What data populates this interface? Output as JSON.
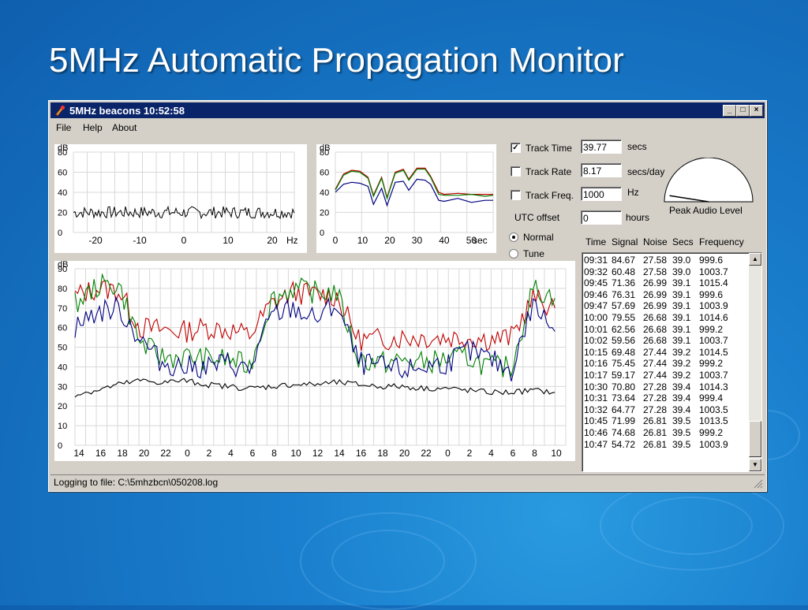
{
  "slide": {
    "title": "5MHz Automatic Propagation Monitor"
  },
  "window": {
    "title": "5MHz beacons 10:52:58",
    "buttons": {
      "minimize": "_",
      "maximize": "□",
      "close": "×"
    }
  },
  "menu": [
    "File",
    "Help",
    "About"
  ],
  "controls": {
    "track_time": {
      "label": "Track Time",
      "checked": true,
      "value": "39.77",
      "unit": "secs"
    },
    "track_rate": {
      "label": "Track Rate",
      "checked": false,
      "value": "8.17",
      "unit": "secs/day"
    },
    "track_freq": {
      "label": "Track Freq.",
      "checked": false,
      "value": "1000",
      "unit": "Hz"
    },
    "utc_offset": {
      "label": "UTC offset",
      "value": "0",
      "unit": "hours"
    },
    "mode_normal": {
      "label": "Normal",
      "selected": true
    },
    "mode_tune": {
      "label": "Tune",
      "selected": false
    },
    "peak_audio": {
      "label": "Peak Audio Level",
      "level": 0.05
    }
  },
  "log": {
    "headers": [
      "Time",
      "Signal",
      "Noise",
      "Secs",
      "Frequency"
    ],
    "rows": [
      [
        "09:31",
        "84.67",
        "27.58",
        "39.0",
        "999.6"
      ],
      [
        "09:32",
        "60.48",
        "27.58",
        "39.0",
        "1003.7"
      ],
      [
        "09:45",
        "71.36",
        "26.99",
        "39.1",
        "1015.4"
      ],
      [
        "09:46",
        "76.31",
        "26.99",
        "39.1",
        "999.6"
      ],
      [
        "09:47",
        "57.69",
        "26.99",
        "39.1",
        "1003.9"
      ],
      [
        "10:00",
        "79.55",
        "26.68",
        "39.1",
        "1014.6"
      ],
      [
        "10:01",
        "62.56",
        "26.68",
        "39.1",
        "999.2"
      ],
      [
        "10:02",
        "59.56",
        "26.68",
        "39.1",
        "1003.7"
      ],
      [
        "10:15",
        "69.48",
        "27.44",
        "39.2",
        "1014.5"
      ],
      [
        "10:16",
        "75.45",
        "27.44",
        "39.2",
        "999.2"
      ],
      [
        "10:17",
        "59.17",
        "27.44",
        "39.2",
        "1003.7"
      ],
      [
        "10:30",
        "70.80",
        "27.28",
        "39.4",
        "1014.3"
      ],
      [
        "10:31",
        "73.64",
        "27.28",
        "39.4",
        "999.4"
      ],
      [
        "10:32",
        "64.77",
        "27.28",
        "39.4",
        "1003.5"
      ],
      [
        "10:45",
        "71.99",
        "26.81",
        "39.5",
        "1013.5"
      ],
      [
        "10:46",
        "74.68",
        "26.81",
        "39.5",
        "999.2"
      ],
      [
        "10:47",
        "54.72",
        "26.81",
        "39.5",
        "1003.9"
      ]
    ]
  },
  "status": {
    "text": "Logging to file: C:\\5mhzbcn\\050208.log"
  },
  "chart_data": [
    {
      "id": "spectrum",
      "type": "line",
      "ylabel": "dB",
      "xlabel_unit": "Hz",
      "ylim": [
        0,
        80
      ],
      "yticks": [
        "80",
        "60",
        "40",
        "20",
        "0"
      ],
      "xticks": [
        "-20",
        "-10",
        "0",
        "10",
        "20"
      ],
      "xlim": [
        -25,
        25
      ],
      "grid": true,
      "series": [
        {
          "color": "#000000",
          "baseline": 20,
          "noise": 6
        }
      ]
    },
    {
      "id": "time-domain",
      "type": "line",
      "ylabel": "dB",
      "xlabel_unit": "sec",
      "ylim": [
        0,
        80
      ],
      "yticks": [
        "80",
        "60",
        "40",
        "20",
        "0"
      ],
      "xticks": [
        "0",
        "10",
        "20",
        "30",
        "40",
        "50"
      ],
      "xlim": [
        0,
        58
      ],
      "grid": true,
      "series": [
        {
          "color": "#c00000",
          "x": [
            0,
            3,
            6,
            9,
            12,
            14,
            17,
            19,
            22,
            25,
            27,
            30,
            33,
            35,
            38,
            40,
            45,
            50,
            55,
            58
          ],
          "y": [
            43,
            58,
            62,
            61,
            55,
            37,
            55,
            35,
            60,
            63,
            53,
            64,
            64,
            56,
            40,
            38,
            39,
            38,
            38,
            38
          ]
        },
        {
          "color": "#008000",
          "x": [
            0,
            3,
            6,
            9,
            12,
            14,
            17,
            19,
            22,
            25,
            27,
            30,
            33,
            35,
            38,
            40,
            45,
            50,
            55,
            58
          ],
          "y": [
            42,
            57,
            61,
            60,
            54,
            36,
            54,
            34,
            59,
            62,
            52,
            63,
            63,
            55,
            38,
            37,
            37,
            38,
            36,
            37
          ]
        },
        {
          "color": "#000080",
          "x": [
            0,
            3,
            6,
            9,
            12,
            14,
            17,
            19,
            22,
            25,
            27,
            30,
            33,
            35,
            38,
            40,
            45,
            50,
            55,
            58
          ],
          "y": [
            40,
            48,
            50,
            49,
            46,
            28,
            44,
            27,
            50,
            51,
            42,
            53,
            52,
            48,
            32,
            31,
            34,
            30,
            32,
            32
          ]
        }
      ]
    },
    {
      "id": "history",
      "type": "line",
      "ylabel": "dB",
      "ylim": [
        0,
        90
      ],
      "yticks": [
        "90",
        "80",
        "70",
        "60",
        "50",
        "40",
        "30",
        "20",
        "10",
        "0"
      ],
      "xticks": [
        "14",
        "16",
        "18",
        "20",
        "22",
        "0",
        "2",
        "4",
        "6",
        "8",
        "10",
        "12",
        "14",
        "16",
        "18",
        "20",
        "22",
        "0",
        "2",
        "4",
        "6",
        "8",
        "10"
      ],
      "xlim": [
        0,
        22.5
      ],
      "grid": true,
      "series": [
        {
          "color": "#c00000",
          "x": [
            0,
            1,
            2,
            3,
            4,
            5,
            6,
            7,
            8,
            9,
            10,
            11,
            12,
            13,
            14,
            15,
            16,
            17,
            18,
            19,
            20,
            21,
            22
          ],
          "y": [
            76,
            80,
            79,
            60,
            59,
            58,
            60,
            59,
            56,
            72,
            78,
            77,
            76,
            54,
            54,
            55,
            55,
            55,
            55,
            54,
            55,
            75,
            70
          ]
        },
        {
          "color": "#008000",
          "x": [
            0,
            1,
            2,
            3,
            4,
            5,
            6,
            7,
            8,
            9,
            10,
            11,
            12,
            13,
            14,
            15,
            16,
            17,
            18,
            19,
            20,
            21,
            22
          ],
          "y": [
            72,
            81,
            82,
            52,
            45,
            45,
            44,
            44,
            40,
            74,
            80,
            78,
            78,
            44,
            42,
            43,
            42,
            44,
            45,
            40,
            40,
            80,
            75
          ]
        },
        {
          "color": "#000080",
          "x": [
            0,
            1,
            2,
            3,
            4,
            5,
            6,
            7,
            8,
            9,
            10,
            11,
            12,
            13,
            14,
            15,
            16,
            17,
            18,
            19,
            20,
            21,
            22
          ],
          "y": [
            60,
            68,
            70,
            54,
            42,
            40,
            40,
            42,
            38,
            66,
            70,
            64,
            72,
            42,
            40,
            38,
            40,
            42,
            48,
            44,
            38,
            72,
            58
          ]
        },
        {
          "color": "#000000",
          "x": [
            0,
            1,
            2,
            3,
            4,
            5,
            6,
            7,
            8,
            9,
            10,
            11,
            12,
            13,
            14,
            15,
            16,
            17,
            18,
            19,
            20,
            21,
            22
          ],
          "y": [
            26,
            28,
            31,
            33,
            32,
            33,
            31,
            30,
            29,
            30,
            31,
            31,
            32,
            31,
            30,
            30,
            29,
            29,
            28,
            27,
            27,
            28,
            27
          ]
        }
      ]
    }
  ]
}
